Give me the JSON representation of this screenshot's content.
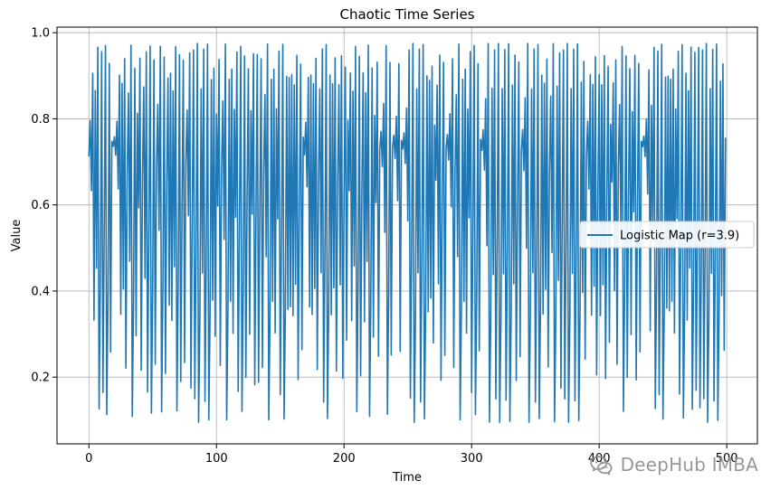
{
  "chart_data": {
    "type": "line",
    "title": "Chaotic Time Series",
    "xlabel": "Time",
    "ylabel": "Value",
    "xlim": [
      -25,
      524
    ],
    "ylim": [
      0.045,
      1.013
    ],
    "x_ticks": [
      0,
      100,
      200,
      300,
      400,
      500
    ],
    "x_tick_labels": [
      "0",
      "100",
      "200",
      "300",
      "400",
      "500"
    ],
    "y_ticks": [
      0.2,
      0.4,
      0.6,
      0.8,
      1.0
    ],
    "y_tick_labels": [
      "0.2",
      "0.4",
      "0.6",
      "0.8",
      "1.0"
    ],
    "grid": true,
    "legend": {
      "position": "center-right",
      "entries": [
        "Logistic Map (r=3.9)"
      ]
    },
    "series": [
      {
        "name": "Logistic Map (r=3.9)",
        "color": "#1f77b4",
        "generator": {
          "kind": "logistic_map",
          "r": 3.9,
          "x0": 0.7142,
          "count": 500
        },
        "x_start": 0,
        "x_step": 1
      }
    ]
  },
  "watermark": {
    "text": "DeepHub IMBA",
    "icon": "wechat-icon"
  }
}
